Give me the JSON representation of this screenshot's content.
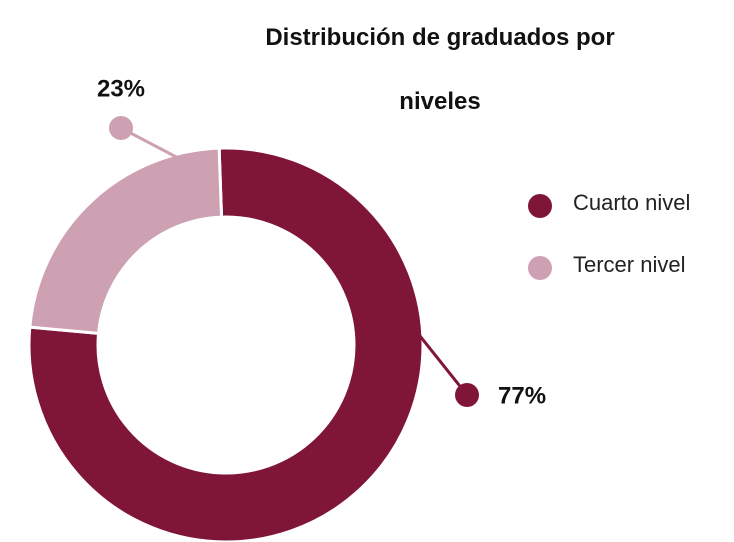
{
  "chart_data": {
    "type": "donut",
    "title": "Distribución de graduados por niveles",
    "categories": [
      "Cuarto nivel",
      "Tercer nivel"
    ],
    "values": [
      77,
      23
    ],
    "value_labels": [
      "77%",
      "23%"
    ],
    "colors": [
      "#7f1537",
      "#cda0b2"
    ],
    "legend": "right"
  }
}
